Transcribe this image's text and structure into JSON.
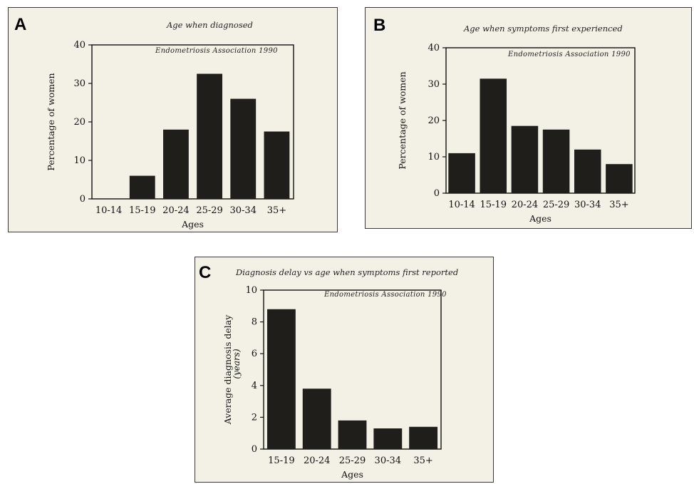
{
  "panels": [
    {
      "letter": "A",
      "title": "Age when diagnosed",
      "source": "Endometriosis Association 1990"
    },
    {
      "letter": "B",
      "title": "Age when symptoms first experienced",
      "source": "Endometriosis Association 1990"
    },
    {
      "letter": "C",
      "title": "Diagnosis delay vs age when symptoms first reported",
      "source": "Endometriosis Association 1990"
    }
  ],
  "chart_data": [
    {
      "type": "bar",
      "title": "Age when diagnosed",
      "xlabel": "Ages",
      "ylabel": "Percentage of women",
      "categories": [
        "10-14",
        "15-19",
        "20-24",
        "25-29",
        "30-34",
        "35+"
      ],
      "values": [
        0,
        6,
        18,
        32.5,
        26,
        17.5
      ],
      "ylim": [
        0,
        40
      ],
      "yticks": [
        0,
        10,
        20,
        30,
        40
      ],
      "annotation": "Endometriosis Association 1990",
      "colors": {
        "bar": "#1f1e1b"
      }
    },
    {
      "type": "bar",
      "title": "Age when symptoms first experienced",
      "xlabel": "Ages",
      "ylabel": "Percentage of women",
      "categories": [
        "10-14",
        "15-19",
        "20-24",
        "25-29",
        "30-34",
        "35+"
      ],
      "values": [
        11,
        31.5,
        18.5,
        17.5,
        12,
        8
      ],
      "ylim": [
        0,
        40
      ],
      "yticks": [
        0,
        10,
        20,
        30,
        40
      ],
      "annotation": "Endometriosis Association 1990",
      "colors": {
        "bar": "#1f1e1b"
      }
    },
    {
      "type": "bar",
      "title": "Diagnosis delay vs age when symptoms first reported",
      "xlabel": "Ages",
      "ylabel": "Average diagnosis delay",
      "ylabel2": "(years)",
      "categories": [
        "15-19",
        "20-24",
        "25-29",
        "30-34",
        "35+"
      ],
      "values": [
        8.8,
        3.8,
        1.8,
        1.3,
        1.4
      ],
      "ylim": [
        0,
        10
      ],
      "yticks": [
        0,
        2,
        4,
        6,
        8,
        10
      ],
      "annotation": "Endometriosis Association 1990",
      "colors": {
        "bar": "#1f1e1b"
      }
    }
  ]
}
